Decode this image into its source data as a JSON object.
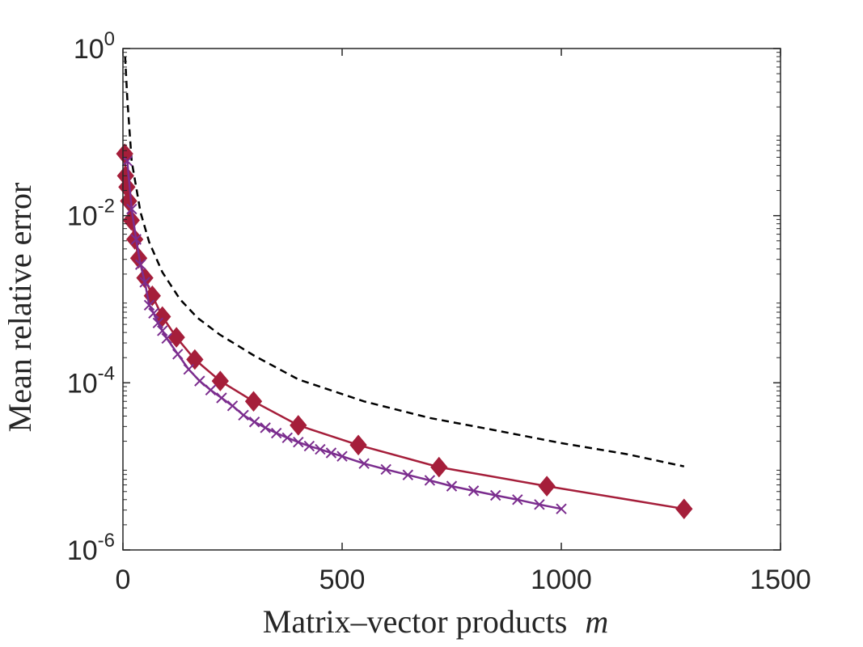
{
  "chart_data": {
    "type": "line",
    "title": "",
    "xlabel": "Matrix–vector products",
    "xlabel_var": "m",
    "ylabel": "Mean relative error",
    "xscale": "linear",
    "yscale": "log",
    "xlim": [
      0,
      1500
    ],
    "ylim": [
      1e-06,
      1
    ],
    "xticks": [
      0,
      500,
      1000,
      1500
    ],
    "xtick_labels": [
      "0",
      "500",
      "1000",
      "1500"
    ],
    "yticks": [
      1e-06,
      0.0001,
      0.01,
      1
    ],
    "ytick_labels": [
      {
        "base": "10",
        "exp": "-6"
      },
      {
        "base": "10",
        "exp": "-4"
      },
      {
        "base": "10",
        "exp": "-2"
      },
      {
        "base": "10",
        "exp": "0"
      }
    ],
    "grid": false,
    "legend": null,
    "series": [
      {
        "name": "dashed-reference",
        "color": "#000000",
        "linestyle": "dashed",
        "marker": "none",
        "x": [
          5,
          10,
          20,
          40,
          60,
          90,
          130,
          170,
          220,
          300,
          400,
          550,
          700,
          850,
          1000,
          1150,
          1280
        ],
        "y": [
          0.8,
          0.25,
          0.045,
          0.011,
          0.0048,
          0.0021,
          0.001,
          0.0006,
          0.00038,
          0.00021,
          0.00011,
          6e-05,
          3.8e-05,
          2.7e-05,
          1.9e-05,
          1.4e-05,
          1e-05
        ]
      },
      {
        "name": "diamond-series",
        "color": "#A51E3A",
        "linestyle": "solid",
        "marker": "diamond",
        "x": [
          4,
          6,
          9,
          13,
          19,
          27,
          36,
          50,
          67,
          90,
          122,
          164,
          222,
          298,
          400,
          537,
          721,
          967,
          1280
        ],
        "y": [
          0.055,
          0.03,
          0.022,
          0.015,
          0.0088,
          0.0052,
          0.0031,
          0.0018,
          0.0011,
          0.00062,
          0.00035,
          0.00019,
          0.000105,
          6e-05,
          3.1e-05,
          1.8e-05,
          9.8e-06,
          5.8e-06,
          3.1e-06
        ]
      },
      {
        "name": "cross-series",
        "color": "#7B2D8E",
        "linestyle": "solid",
        "marker": "x",
        "x": [
          10,
          20,
          30,
          40,
          50,
          60,
          70,
          80,
          90,
          100,
          125,
          150,
          175,
          200,
          225,
          250,
          275,
          300,
          325,
          350,
          375,
          400,
          425,
          450,
          475,
          500,
          550,
          600,
          650,
          700,
          750,
          800,
          850,
          900,
          950,
          1000
        ],
        "y": [
          0.045,
          0.012,
          0.0052,
          0.0026,
          0.0016,
          0.00085,
          0.00068,
          0.00052,
          0.00042,
          0.00034,
          0.00022,
          0.000145,
          0.000105,
          8.2e-05,
          6.6e-05,
          5.3e-05,
          4.1e-05,
          3.4e-05,
          2.9e-05,
          2.5e-05,
          2.2e-05,
          1.95e-05,
          1.75e-05,
          1.6e-05,
          1.45e-05,
          1.32e-05,
          1.08e-05,
          9.2e-06,
          7.9e-06,
          6.8e-06,
          5.8e-06,
          5.1e-06,
          4.5e-06,
          4e-06,
          3.5e-06,
          3.1e-06
        ]
      }
    ]
  }
}
